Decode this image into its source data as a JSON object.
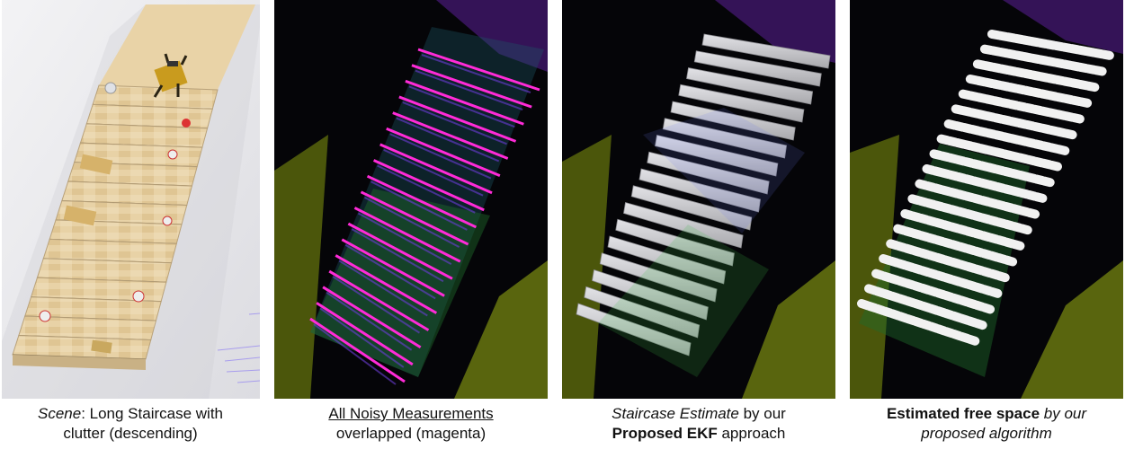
{
  "panels": [
    {
      "id": "scene",
      "caption_line1_italic": "Scene",
      "caption_line1_rest": ": Long Staircase with",
      "caption_line2": "clutter (descending)"
    },
    {
      "id": "measurements",
      "caption_line1_underlined": "All Noisy Measurements",
      "caption_line2": "overlapped (magenta)"
    },
    {
      "id": "ekf",
      "caption_line1_italic": "Staircase Estimate",
      "caption_line1_rest": " by our",
      "caption_line2_bold": "Proposed EKF",
      "caption_line2_rest": " approach"
    },
    {
      "id": "freespace",
      "caption_line1_bold": "Estimated free space",
      "caption_line1_italic": " by our",
      "caption_line2_italic": "proposed algorithm"
    }
  ],
  "colors": {
    "wood": "#e6cfa3",
    "scene_bg": "#ececef",
    "pointcloud_bg": "#050508",
    "magenta": "#ff2bd8",
    "terrain": "#7b8a12",
    "steps_gray": "#c9c9cb",
    "free_white": "#f1f1f1"
  }
}
